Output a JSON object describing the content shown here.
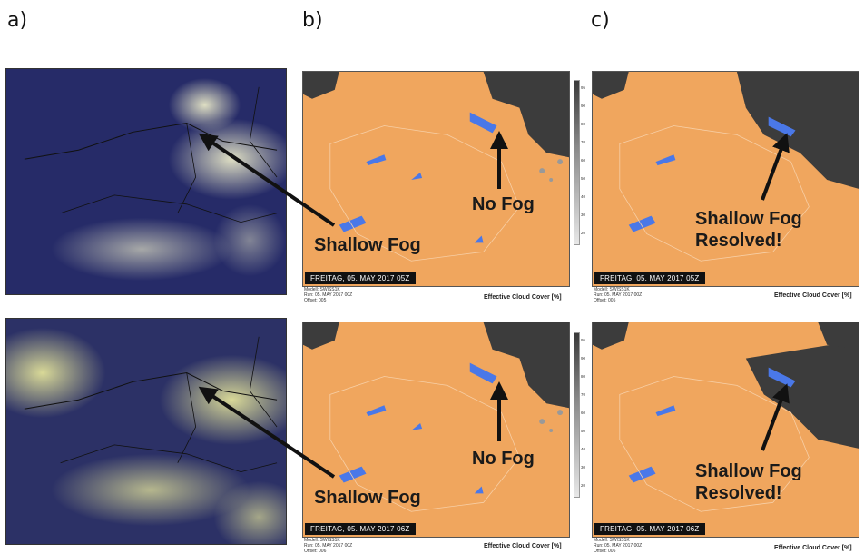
{
  "panel_labels": {
    "a": "a)",
    "b": "b)",
    "c": "c)"
  },
  "rows": [
    {
      "date": "FREITAG, 05. MAY 2017 05Z",
      "model": "Modell: SWISS1K",
      "run": "Run: 05. MAY 2017 00Z",
      "offset": "Offset: 005",
      "legend_title": "Effective Cloud Cover [%]",
      "b_fog_label": "No Fog",
      "c_fog_label_line1": "Shallow Fog",
      "c_fog_label_line2": "Resolved!",
      "sat_annotation": "Shallow Fog"
    },
    {
      "date": "FREITAG, 05. MAY 2017 06Z",
      "model": "Modell: SWISS1K",
      "run": "Run: 05. MAY 2017 00Z",
      "offset": "Offset: 006",
      "legend_title": "Effective Cloud Cover [%]",
      "b_fog_label": "No Fog",
      "c_fog_label_line1": "Shallow Fog",
      "c_fog_label_line2": "Resolved!",
      "sat_annotation": "Shallow Fog"
    }
  ],
  "scale_ticks": [
    "95",
    "90",
    "80",
    "70",
    "60",
    "50",
    "40",
    "30",
    "20"
  ],
  "colors": {
    "clear_sky": "#f0a65e",
    "cloud": "#3c3c3c",
    "lake": "#4a78e8",
    "satellite_dark": "#2a2f6e",
    "satellite_cloud": "#d9d98a",
    "arrow": "#111111"
  }
}
